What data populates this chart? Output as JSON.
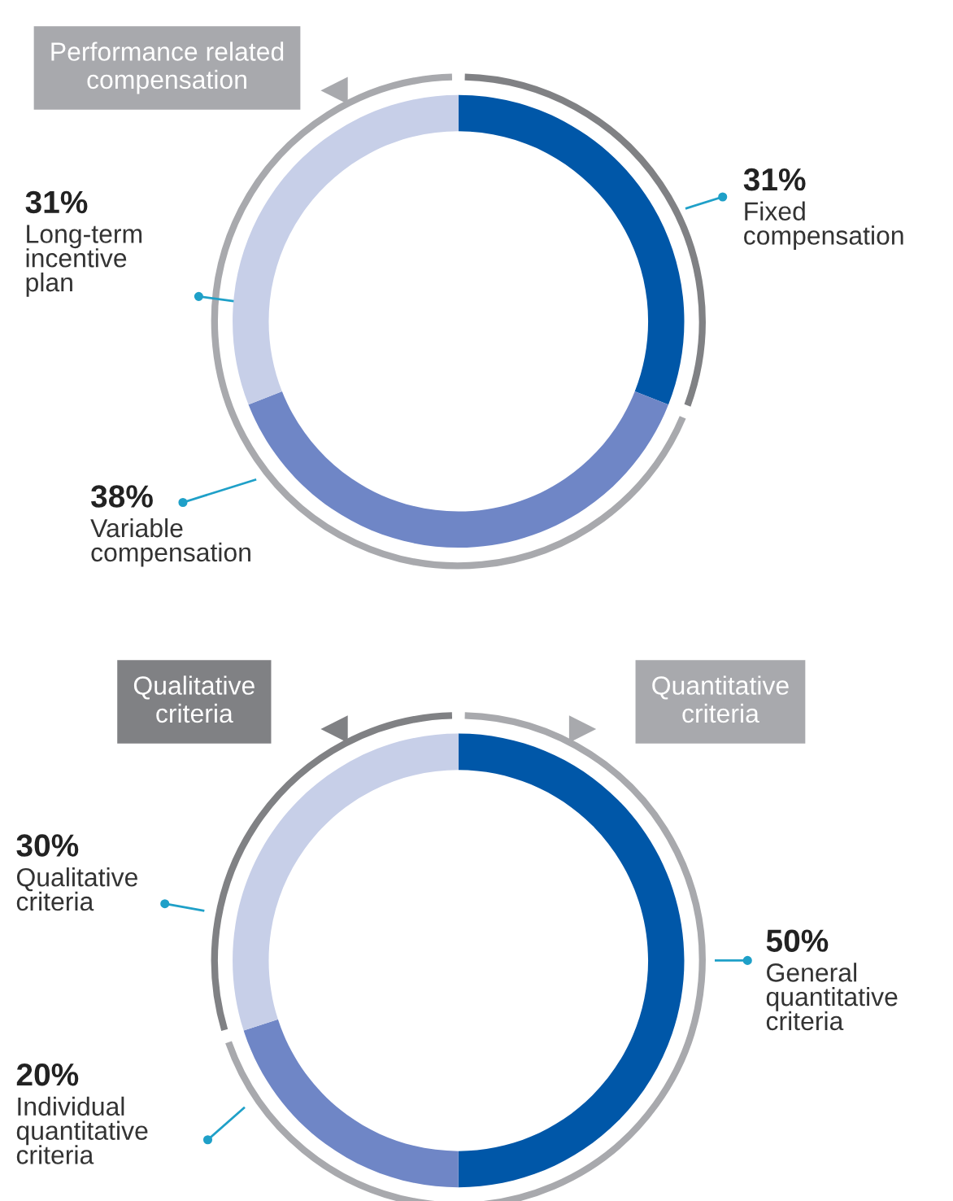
{
  "chart_data": [
    {
      "type": "donut",
      "categories": [
        "Fixed\ncompensation",
        "Variable\ncompensation",
        "Long-term\nincentive\nplan"
      ],
      "values": [
        31,
        38,
        31
      ],
      "colors": [
        "#0057a8",
        "#6f86c6",
        "#c7cfe8"
      ],
      "value_labels": [
        "31%",
        "38%",
        "31%"
      ],
      "annotations": [
        "Performance related\ncompensation"
      ]
    },
    {
      "type": "donut",
      "categories": [
        "General\nquantitative\ncriteria",
        "Individual\nquantitative\ncriteria",
        "Qualitative\ncriteria"
      ],
      "values": [
        50,
        20,
        30
      ],
      "colors": [
        "#0057a8",
        "#6f86c6",
        "#c7cfe8"
      ],
      "value_labels": [
        "50%",
        "20%",
        "30%"
      ],
      "annotations": [
        "Qualitative\ncriteria",
        "Quantitative\ncriteria"
      ]
    }
  ]
}
